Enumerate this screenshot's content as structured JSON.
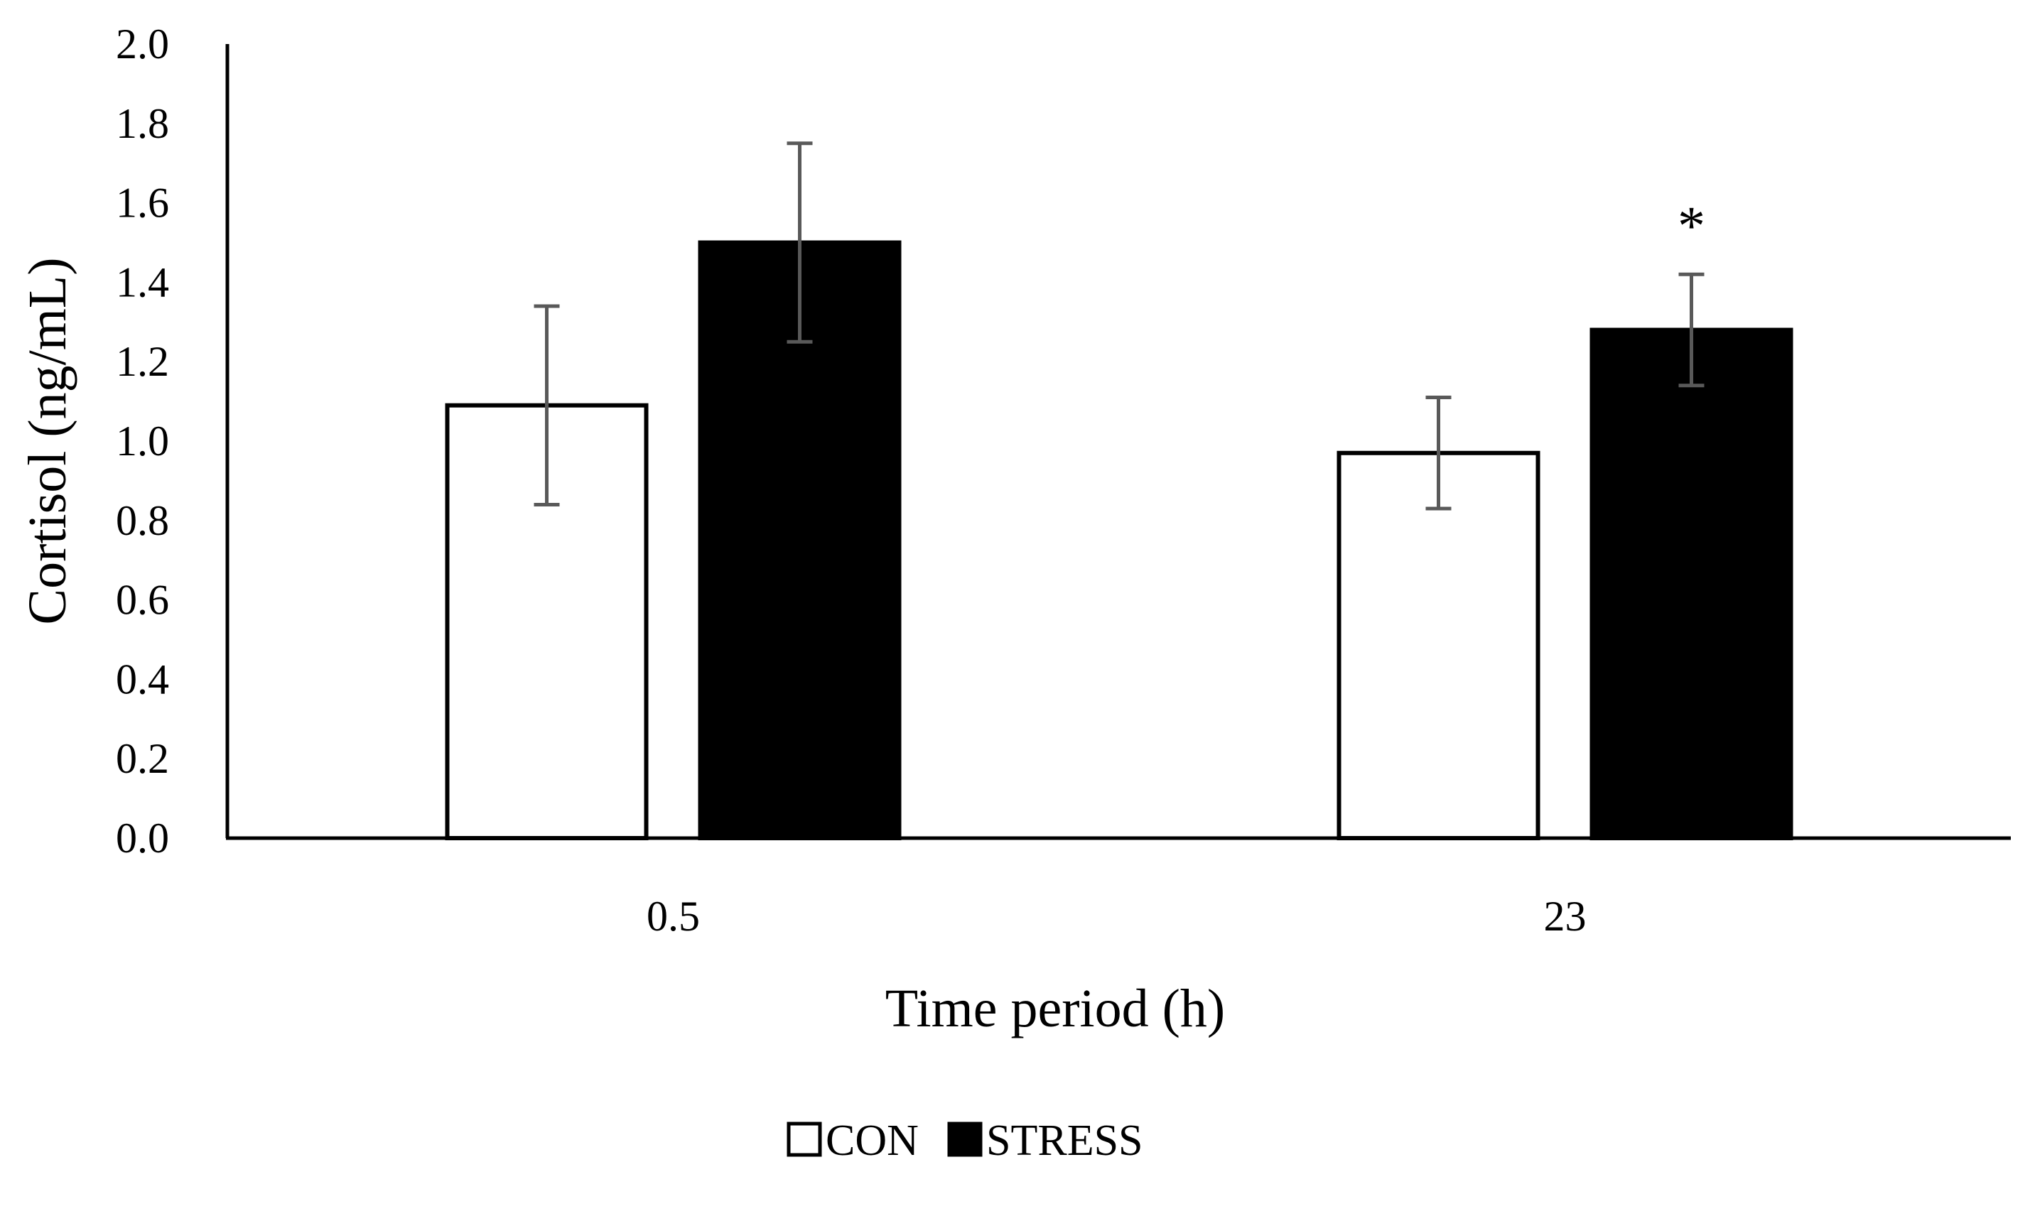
{
  "chart_data": {
    "type": "bar",
    "title": "",
    "xlabel": "Time period (h)",
    "ylabel": "Cortisol (ng/mL)",
    "ylim": [
      0,
      2.0
    ],
    "yticks": [
      "0.0",
      "0.2",
      "0.4",
      "0.6",
      "0.8",
      "1.0",
      "1.2",
      "1.4",
      "1.6",
      "1.8",
      "2.0"
    ],
    "categories": [
      "0.5",
      "23"
    ],
    "series": [
      {
        "name": "CON",
        "values": [
          1.09,
          0.97
        ],
        "errors": [
          0.25,
          0.14
        ],
        "fill": "#ffffff",
        "stroke": "#000000"
      },
      {
        "name": "STRESS",
        "values": [
          1.5,
          1.28
        ],
        "errors": [
          0.25,
          0.14
        ],
        "fill": "#000000",
        "stroke": "#000000"
      }
    ],
    "annotations": [
      {
        "text": "*",
        "category": "23",
        "series": "STRESS"
      }
    ],
    "grid": false,
    "legend_position": "bottom-center",
    "error_bar_color": "#595959"
  }
}
